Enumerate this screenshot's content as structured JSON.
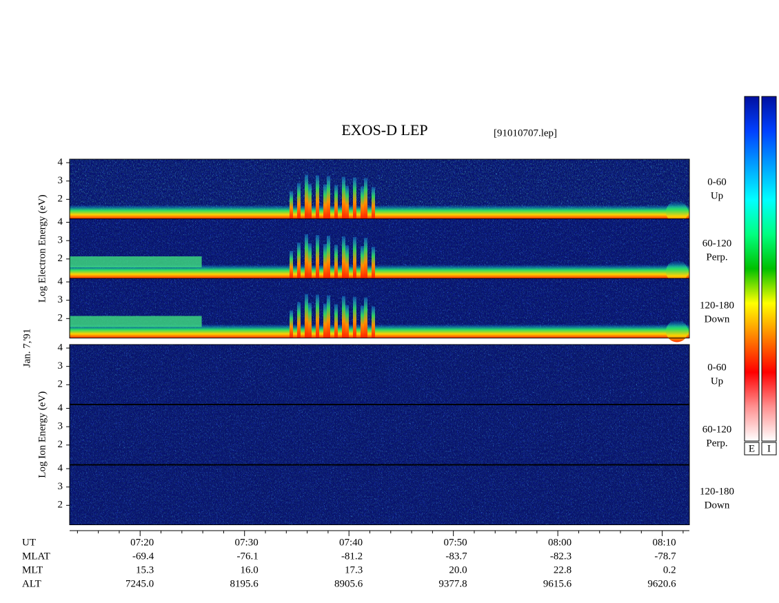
{
  "chart_data": {
    "type": "spectrogram",
    "title": "EXOS-D LEP",
    "file": "[91010707.lep]",
    "date_label": "Jan. 7,'91",
    "groups": [
      {
        "ylabel": "Log Electron Energy (eV)",
        "panels": [
          {
            "label": "0-60",
            "direction": "Up"
          },
          {
            "label": "60-120",
            "direction": "Perp."
          },
          {
            "label": "120-180",
            "direction": "Down"
          }
        ]
      },
      {
        "ylabel": "Log Ion Energy (eV)",
        "panels": [
          {
            "label": "0-60",
            "direction": "Up"
          },
          {
            "label": "60-120",
            "direction": "Perp."
          },
          {
            "label": "120-180",
            "direction": "Down"
          }
        ]
      }
    ],
    "ylim": [
      0.94,
      4.19
    ],
    "yticks": [
      2,
      3,
      4
    ],
    "xlim": [
      433.25,
      492.6
    ],
    "xticks": [
      {
        "value": 440,
        "label": "07:20"
      },
      {
        "value": 450,
        "label": "07:30"
      },
      {
        "value": 460,
        "label": "07:40"
      },
      {
        "value": 470,
        "label": "07:50"
      },
      {
        "value": 480,
        "label": "08:00"
      },
      {
        "value": 490,
        "label": "08:10"
      }
    ],
    "xminorticks": [
      434,
      436,
      438,
      442,
      444,
      446,
      448,
      452,
      454,
      456,
      458,
      462,
      464,
      466,
      468,
      472,
      474,
      476,
      478,
      482,
      484,
      486,
      488,
      492
    ],
    "ephemeris": {
      "first_label": "UT",
      "rows": [
        {
          "label": "MLAT",
          "values": [
            "-69.4",
            "-76.1",
            "-81.2",
            "-83.7",
            "-82.3",
            "-78.7"
          ]
        },
        {
          "label": "MLT",
          "values": [
            "15.3",
            "16.0",
            "17.3",
            "20.0",
            "22.8",
            "0.2"
          ]
        },
        {
          "label": "ALT",
          "values": [
            "7245.0",
            "8195.6",
            "8905.6",
            "9377.8",
            "9615.6",
            "9620.6"
          ]
        }
      ]
    },
    "colorbar": {
      "labels": [
        "E",
        "I"
      ],
      "colors": [
        "#ffffff",
        "#ff9090",
        "#ff0000",
        "#ff8000",
        "#ffff00",
        "#00c000",
        "#00ff80",
        "#00ffff",
        "#00a0ff",
        "#0040ff",
        "#0010a0"
      ]
    }
  }
}
